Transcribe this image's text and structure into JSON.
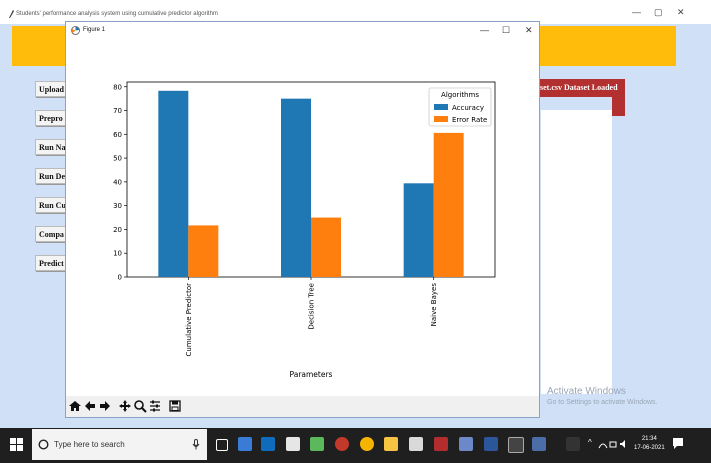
{
  "main_window": {
    "title": "Students' performance analysis system using cumulative predictor algorithm",
    "controls": {
      "minimize": "—",
      "maximize": "▢",
      "close": "✕"
    },
    "buttons": [
      "Upload",
      "Prepro",
      "Run Na",
      "Run De",
      "Run Cu",
      "Compa",
      "Predict"
    ],
    "loaded_status": "set.csv Dataset Loaded"
  },
  "figure_window": {
    "title": "Figure 1",
    "controls": {
      "minimize": "—",
      "maximize": "☐",
      "close": "✕"
    },
    "toolbar_icons": [
      "home-icon",
      "back-arrow-icon",
      "forward-arrow-icon",
      "pan-icon",
      "zoom-icon",
      "configure-icon",
      "save-icon"
    ]
  },
  "chart_data": {
    "type": "bar",
    "categories": [
      "Cumulative Predictor",
      "Decision Tree",
      "Naive Bayes"
    ],
    "series": [
      {
        "name": "Accuracy",
        "values": [
          78.3,
          75.0,
          39.4
        ],
        "color": "#1f77b4"
      },
      {
        "name": "Error Rate",
        "values": [
          21.7,
          25.0,
          60.6
        ],
        "color": "#ff7f0e"
      }
    ],
    "xlabel": "Parameters",
    "ylabel": "",
    "ylim": [
      0,
      82
    ],
    "yticks": [
      0,
      10,
      20,
      30,
      40,
      50,
      60,
      70,
      80
    ],
    "legend_title": "Algorithms",
    "legend_position": "top-right",
    "grid": false
  },
  "watermark": {
    "line1": "Activate Windows",
    "line2": "Go to Settings to activate Windows."
  },
  "taskbar": {
    "search_placeholder": "Type here to search",
    "time": "21:34",
    "date": "17-06-2021"
  }
}
